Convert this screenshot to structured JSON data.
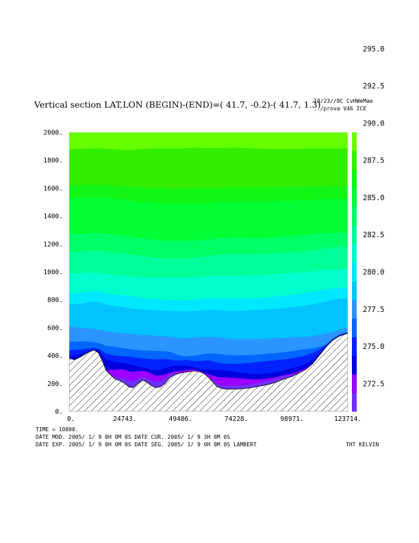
{
  "header": {
    "title": "Vertical section LAT,LON (BEGIN)-(END)=( 41.7, -0.2)-( 41.7,  1.3)",
    "run_info_line1": "10/23//8C     CvHWeMae",
    "run_info_line2": "../prova V46 ICE"
  },
  "footer": {
    "time_line": "TIME =    10800.",
    "dates_line1": "DATE MOD. 2005/ 1/ 9   0H 0M 0S   DATE CUR. 2005/ 1/ 9   3H 0M 0S",
    "dates_line2": "DATE EXP. 2005/ 1/ 9   0H 0M 0S   DATE SEG. 2005/ 1/ 9   0H 0M 0S   LAMBERT",
    "field_label": "THT KELVIN"
  },
  "chart_data": {
    "type": "contour",
    "title": "Vertical section LAT,LON (BEGIN)-(END)=( 41.7, -0.2)-( 41.7,  1.3)",
    "variable": "THT",
    "units": "KELVIN",
    "xlim": [
      0,
      123714
    ],
    "ylim": [
      0,
      2000
    ],
    "x_ticks": [
      0,
      24743,
      49486,
      74228,
      98971,
      123714
    ],
    "x_tick_labels": [
      "0.",
      "24743.",
      "49486.",
      "74228.",
      "98971.",
      "123714."
    ],
    "y_ticks": [
      0,
      200,
      400,
      600,
      800,
      1000,
      1200,
      1400,
      1600,
      1800,
      2000
    ],
    "y_tick_labels": [
      "0.",
      "200.",
      "400.",
      "600.",
      "800.",
      "1000.",
      "1200.",
      "1400.",
      "1600.",
      "1800.",
      "2000."
    ],
    "x": [
      0,
      2500,
      5000,
      8000,
      11000,
      13000,
      14800,
      16500,
      18500,
      20500,
      22500,
      24743,
      26500,
      28500,
      30500,
      32500,
      34500,
      36500,
      38500,
      40500,
      42500,
      44500,
      46500,
      48500,
      49486,
      51500,
      53500,
      55500,
      57500,
      59500,
      61500,
      63500,
      65500,
      67500,
      69500,
      71500,
      74228,
      77000,
      80000,
      83000,
      86000,
      89000,
      92000,
      95000,
      98971,
      102000,
      105000,
      108000,
      111000,
      114000,
      117000,
      120000,
      123714
    ],
    "terrain_height": [
      380,
      370,
      390,
      420,
      440,
      420,
      360,
      290,
      260,
      230,
      220,
      200,
      175,
      170,
      200,
      225,
      210,
      185,
      170,
      175,
      200,
      240,
      260,
      270,
      275,
      280,
      285,
      290,
      285,
      275,
      250,
      215,
      180,
      165,
      160,
      160,
      160,
      162,
      168,
      175,
      185,
      195,
      210,
      230,
      250,
      275,
      300,
      340,
      400,
      460,
      510,
      540,
      560
    ],
    "contour_levels": [
      271.25,
      272.5,
      273.75,
      275.0,
      276.25,
      277.5,
      278.75,
      280.0,
      281.25,
      282.5,
      283.75,
      285.0,
      286.25,
      287.5,
      288.75,
      290.0,
      291.25,
      292.5,
      293.75,
      295.0,
      296.25
    ],
    "band_colors": [
      "#7030ff",
      "#9b00ff",
      "#0000dd",
      "#0022ff",
      "#0066ff",
      "#2a95ff",
      "#00c3ff",
      "#00e8ff",
      "#00ffcc",
      "#00ff99",
      "#00ff66",
      "#00ff33",
      "#12f515",
      "#33ee00",
      "#66ff00"
    ],
    "band_top_z": [
      [
        340,
        336,
        348,
        372,
        392,
        398,
        336,
        266,
        250,
        244,
        240,
        236,
        220,
        214,
        238,
        248,
        240,
        222,
        214,
        216,
        238,
        262,
        274,
        278,
        278,
        282,
        284,
        286,
        282,
        270,
        252,
        228,
        200,
        188,
        184,
        184,
        186,
        188,
        192,
        200,
        210,
        222,
        236,
        252,
        262,
        280,
        302,
        340,
        400,
        460,
        510,
        540,
        560
      ],
      [
        360,
        356,
        368,
        392,
        410,
        412,
        350,
        296,
        298,
        300,
        302,
        300,
        288,
        282,
        288,
        290,
        286,
        270,
        256,
        258,
        264,
        276,
        284,
        288,
        290,
        294,
        298,
        300,
        292,
        280,
        268,
        258,
        248,
        244,
        244,
        242,
        238,
        236,
        232,
        230,
        232,
        236,
        246,
        260,
        270,
        288,
        308,
        344,
        402,
        462,
        512,
        542,
        562
      ],
      [
        400,
        398,
        410,
        426,
        442,
        440,
        396,
        372,
        362,
        358,
        350,
        346,
        338,
        330,
        322,
        314,
        308,
        300,
        296,
        300,
        310,
        318,
        324,
        326,
        326,
        326,
        322,
        316,
        306,
        300,
        298,
        298,
        298,
        298,
        292,
        288,
        282,
        276,
        272,
        268,
        268,
        272,
        282,
        292,
        310,
        322,
        340,
        368,
        410,
        464,
        514,
        544,
        564
      ],
      [
        440,
        440,
        444,
        450,
        454,
        448,
        432,
        414,
        406,
        400,
        396,
        394,
        392,
        388,
        382,
        380,
        376,
        374,
        372,
        374,
        376,
        372,
        366,
        364,
        366,
        368,
        366,
        360,
        360,
        364,
        366,
        360,
        352,
        346,
        342,
        340,
        340,
        342,
        346,
        352,
        358,
        362,
        366,
        372,
        380,
        390,
        400,
        418,
        442,
        476,
        520,
        548,
        566
      ],
      [
        500,
        500,
        502,
        500,
        496,
        490,
        480,
        470,
        466,
        462,
        456,
        452,
        446,
        442,
        440,
        436,
        436,
        434,
        432,
        432,
        432,
        426,
        416,
        404,
        398,
        394,
        396,
        398,
        404,
        410,
        414,
        414,
        412,
        410,
        406,
        404,
        402,
        402,
        404,
        406,
        410,
        414,
        418,
        424,
        432,
        440,
        446,
        452,
        462,
        480,
        512,
        550,
        568
      ],
      [
        610,
        604,
        600,
        596,
        590,
        586,
        582,
        574,
        570,
        566,
        562,
        560,
        556,
        552,
        550,
        548,
        546,
        544,
        542,
        540,
        538,
        534,
        530,
        526,
        524,
        524,
        526,
        528,
        530,
        532,
        532,
        532,
        530,
        526,
        524,
        520,
        518,
        518,
        518,
        518,
        520,
        522,
        524,
        526,
        530,
        532,
        534,
        540,
        548,
        558,
        570,
        584,
        600
      ],
      [
        770,
        766,
        772,
        780,
        786,
        784,
        776,
        766,
        760,
        754,
        750,
        746,
        740,
        736,
        732,
        730,
        728,
        726,
        724,
        724,
        722,
        720,
        720,
        718,
        716,
        716,
        718,
        720,
        722,
        724,
        726,
        726,
        726,
        724,
        722,
        720,
        720,
        722,
        724,
        726,
        728,
        732,
        736,
        740,
        746,
        752,
        758,
        766,
        776,
        786,
        798,
        806,
        810
      ],
      [
        850,
        846,
        850,
        858,
        862,
        860,
        854,
        846,
        840,
        836,
        832,
        830,
        826,
        822,
        818,
        814,
        810,
        806,
        804,
        802,
        800,
        798,
        796,
        796,
        796,
        796,
        798,
        800,
        804,
        806,
        808,
        810,
        810,
        810,
        810,
        808,
        808,
        808,
        810,
        812,
        814,
        818,
        822,
        828,
        834,
        842,
        850,
        858,
        866,
        874,
        880,
        884,
        886
      ],
      [
        990,
        988,
        990,
        994,
        996,
        994,
        990,
        984,
        980,
        976,
        972,
        970,
        968,
        966,
        964,
        962,
        960,
        958,
        958,
        958,
        958,
        958,
        958,
        958,
        958,
        958,
        960,
        962,
        964,
        966,
        968,
        970,
        972,
        972,
        972,
        972,
        972,
        972,
        974,
        976,
        978,
        980,
        984,
        988,
        992,
        996,
        1000,
        1004,
        1008,
        1012,
        1016,
        1018,
        1020
      ],
      [
        1140,
        1142,
        1146,
        1150,
        1152,
        1152,
        1150,
        1146,
        1142,
        1138,
        1134,
        1130,
        1126,
        1122,
        1118,
        1114,
        1110,
        1106,
        1102,
        1100,
        1098,
        1096,
        1096,
        1096,
        1096,
        1098,
        1100,
        1102,
        1104,
        1108,
        1112,
        1116,
        1120,
        1122,
        1124,
        1126,
        1126,
        1126,
        1126,
        1126,
        1128,
        1130,
        1132,
        1136,
        1140,
        1144,
        1150,
        1156,
        1162,
        1168,
        1174,
        1178,
        1180
      ],
      [
        1270,
        1270,
        1272,
        1276,
        1278,
        1278,
        1276,
        1272,
        1268,
        1264,
        1260,
        1256,
        1252,
        1248,
        1244,
        1240,
        1236,
        1232,
        1228,
        1226,
        1224,
        1222,
        1222,
        1222,
        1222,
        1222,
        1222,
        1224,
        1226,
        1228,
        1232,
        1236,
        1240,
        1242,
        1244,
        1246,
        1246,
        1246,
        1244,
        1244,
        1244,
        1246,
        1248,
        1252,
        1256,
        1260,
        1264,
        1268,
        1272,
        1276,
        1278,
        1280,
        1280
      ],
      [
        1530,
        1530,
        1532,
        1534,
        1536,
        1536,
        1534,
        1532,
        1528,
        1524,
        1520,
        1516,
        1512,
        1508,
        1504,
        1500,
        1498,
        1496,
        1494,
        1492,
        1490,
        1490,
        1490,
        1490,
        1490,
        1490,
        1490,
        1490,
        1490,
        1490,
        1492,
        1494,
        1496,
        1498,
        1500,
        1502,
        1504,
        1504,
        1504,
        1504,
        1504,
        1504,
        1506,
        1508,
        1510,
        1512,
        1514,
        1516,
        1518,
        1520,
        1522,
        1524,
        1524
      ],
      [
        1620,
        1620,
        1622,
        1624,
        1626,
        1626,
        1624,
        1622,
        1620,
        1618,
        1616,
        1614,
        1612,
        1610,
        1608,
        1606,
        1604,
        1602,
        1600,
        1600,
        1598,
        1598,
        1598,
        1598,
        1598,
        1598,
        1598,
        1598,
        1600,
        1600,
        1602,
        1602,
        1604,
        1604,
        1606,
        1606,
        1606,
        1606,
        1606,
        1606,
        1606,
        1606,
        1608,
        1608,
        1610,
        1610,
        1612,
        1612,
        1614,
        1614,
        1616,
        1616,
        1616
      ],
      [
        1880,
        1880,
        1882,
        1884,
        1884,
        1886,
        1884,
        1882,
        1880,
        1878,
        1876,
        1874,
        1874,
        1876,
        1878,
        1880,
        1882,
        1884,
        1884,
        1884,
        1884,
        1884,
        1884,
        1884,
        1884,
        1886,
        1888,
        1890,
        1890,
        1888,
        1886,
        1886,
        1886,
        1886,
        1888,
        1890,
        1890,
        1888,
        1886,
        1884,
        1882,
        1880,
        1880,
        1880,
        1882,
        1882,
        1884,
        1884,
        1884,
        1884,
        1884,
        1884,
        1884
      ],
      [
        2000,
        2000,
        2000,
        2000,
        2000,
        2000,
        2000,
        2000,
        2000,
        2000,
        2000,
        2000,
        2000,
        2000,
        2000,
        2000,
        2000,
        2000,
        2000,
        2000,
        2000,
        2000,
        2000,
        2000,
        2000,
        2000,
        2000,
        2000,
        2000,
        2000,
        2000,
        2000,
        2000,
        2000,
        2000,
        2000,
        2000,
        2000,
        2000,
        2000,
        2000,
        2000,
        2000,
        2000,
        2000,
        2000,
        2000,
        2000,
        2000,
        2000,
        2000,
        2000,
        2000
      ]
    ],
    "colorbar": {
      "label_values": [
        "272.5",
        "275.0",
        "277.5",
        "280.0",
        "282.5",
        "285.0",
        "287.5",
        "290.0",
        "292.5",
        "295.0"
      ],
      "segment_colors": [
        "#7030ff",
        "#9b00ff",
        "#0000dd",
        "#0022ff",
        "#0066ff",
        "#2a95ff",
        "#00c3ff",
        "#00e8ff",
        "#00ffcc",
        "#00ff99",
        "#00ff66",
        "#00ff33",
        "#12f515",
        "#33ee00",
        "#66ff00"
      ]
    },
    "legend_placement": "right (vertical colorbar)",
    "grid": false
  }
}
